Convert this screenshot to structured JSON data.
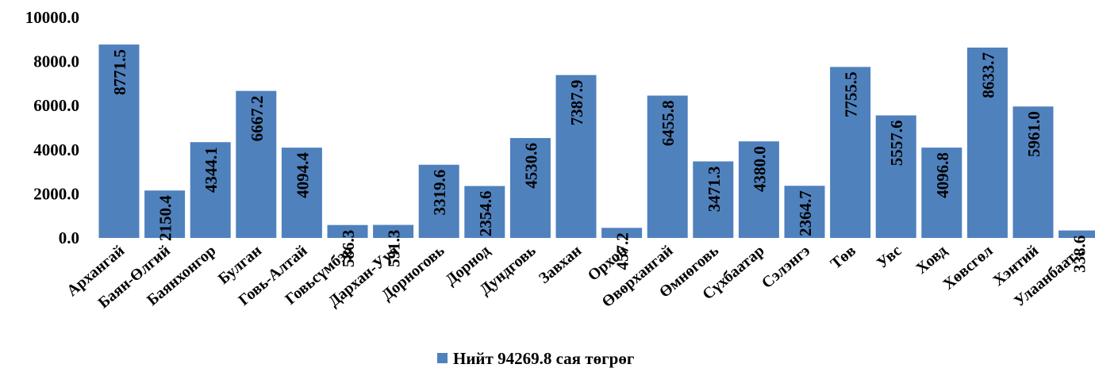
{
  "chart_data": {
    "type": "bar",
    "title": "",
    "xlabel": "",
    "ylabel": "",
    "ylim": [
      0,
      10000
    ],
    "yticks": [
      "0.0",
      "2000.0",
      "4000.0",
      "6000.0",
      "8000.0",
      "10000.0"
    ],
    "grid": false,
    "legend_position": "bottom",
    "series": [
      {
        "name": "Нийт 94269.8 сая төгрөг",
        "color": "#4f81bd"
      }
    ],
    "categories": [
      "Архангай",
      "Баян-Өлгий",
      "Баянхонгор",
      "Булган",
      "Говь-Алтай",
      "Говьсүмбэр",
      "Дархан-Уул",
      "Дорноговь",
      "Дорнод",
      "Дундговь",
      "Завхан",
      "Орхон",
      "Өвөрхангай",
      "Өмнөговь",
      "Сүхбаатар",
      "Сэлэнгэ",
      "Төв",
      "Увс",
      "Ховд",
      "Хөвсгөл",
      "Хэнтий",
      "Улаанбаат..."
    ],
    "values": [
      8771.5,
      2150.4,
      4344.1,
      6667.2,
      4094.4,
      586.3,
      591.3,
      3319.6,
      2354.6,
      4530.6,
      7387.9,
      457.2,
      6455.8,
      3471.3,
      4380.0,
      2364.7,
      7755.5,
      5557.6,
      4096.8,
      8633.7,
      5961.0,
      338.6
    ],
    "value_labels": [
      "8771.5",
      "2150.4",
      "4344.1",
      "6667.2",
      "4094.4",
      "586.3",
      "591.3",
      "3319.6",
      "2354.6",
      "4530.6",
      "7387.9",
      "457.2",
      "6455.8",
      "3471.3",
      "4380.0",
      "2364.7",
      "7755.5",
      "5557.6",
      "4096.8",
      "8633.7",
      "5961.0",
      "338.6"
    ]
  }
}
